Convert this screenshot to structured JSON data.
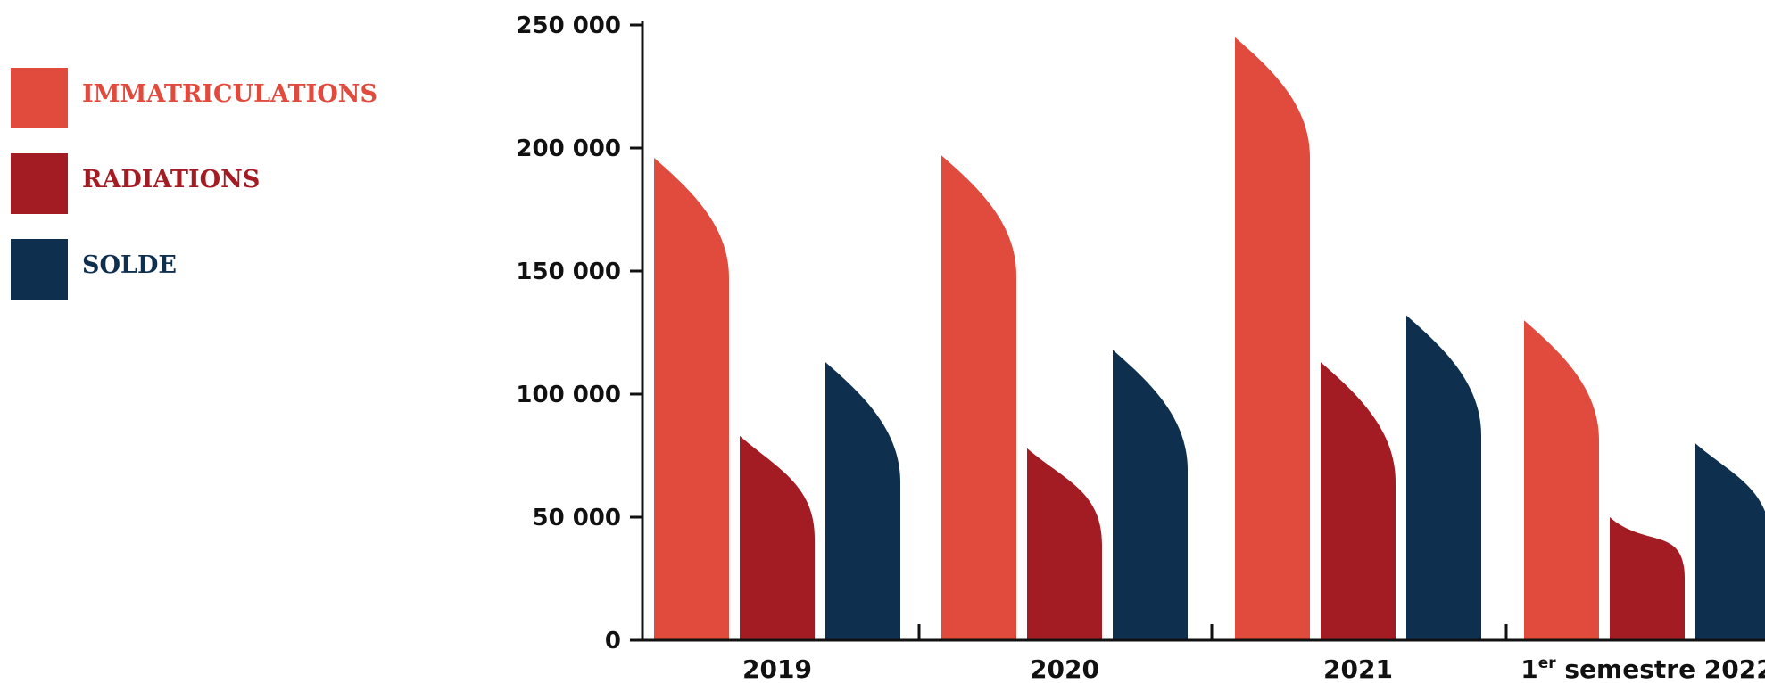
{
  "chart_data": {
    "type": "bar",
    "title": "",
    "xlabel": "",
    "ylabel": "",
    "categories": [
      "2019",
      "2020",
      "2021",
      "1er semestre 2022"
    ],
    "category_display": [
      {
        "main": "2019",
        "sup": "",
        "rest": ""
      },
      {
        "main": "2020",
        "sup": "",
        "rest": ""
      },
      {
        "main": "2021",
        "sup": "",
        "rest": ""
      },
      {
        "main": "1",
        "sup": "er",
        "rest": " semestre 2022"
      }
    ],
    "series": [
      {
        "name": "IMMATRICULATIONS",
        "color": "#e04b3e",
        "values": [
          196000,
          197000,
          245000,
          130000
        ]
      },
      {
        "name": "RADIATIONS",
        "color": "#a31c24",
        "values": [
          83000,
          78000,
          113000,
          50000
        ]
      },
      {
        "name": "SOLDE",
        "color": "#0e2f4e",
        "values": [
          113000,
          118000,
          132000,
          80000
        ]
      }
    ],
    "yticks": [
      0,
      50000,
      100000,
      150000,
      200000,
      250000
    ],
    "ytick_labels": [
      "0",
      "50 000",
      "100 000",
      "150 000",
      "200 000",
      "250 000"
    ],
    "ylim": [
      0,
      250000
    ],
    "legend_position": "top-left",
    "grid": false
  }
}
